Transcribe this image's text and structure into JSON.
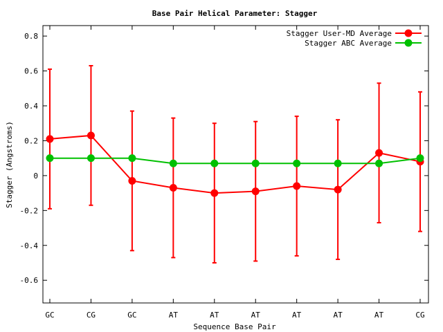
{
  "chart_data": {
    "type": "line",
    "title": "Base Pair Helical Parameter: Stagger",
    "xlabel": "Sequence Base Pair",
    "ylabel": "Stagger (Angstroms)",
    "categories": [
      "GC",
      "CG",
      "GC",
      "AT",
      "AT",
      "AT",
      "AT",
      "AT",
      "AT",
      "CG"
    ],
    "ylim": [
      -0.73,
      0.86
    ],
    "yticks": [
      -0.6,
      -0.4,
      -0.2,
      0,
      0.2,
      0.4,
      0.6,
      0.8
    ],
    "ytick_labels": [
      "-0.6",
      "-0.4",
      "-0.2",
      "0",
      "0.2",
      "0.4",
      "0.6",
      "0.8"
    ],
    "grid": false,
    "legend_position": "top-right",
    "series": [
      {
        "name": "Stagger User-MD Average",
        "color": "#ff0000",
        "values": [
          0.21,
          0.23,
          -0.03,
          -0.07,
          -0.1,
          -0.09,
          -0.06,
          -0.08,
          0.13,
          0.08
        ],
        "err_low": [
          -0.19,
          -0.17,
          -0.43,
          -0.47,
          -0.5,
          -0.49,
          -0.46,
          -0.48,
          -0.27,
          -0.32
        ],
        "err_high": [
          0.61,
          0.63,
          0.37,
          0.33,
          0.3,
          0.31,
          0.34,
          0.32,
          0.53,
          0.48
        ]
      },
      {
        "name": "Stagger ABC Average",
        "color": "#00c000",
        "values": [
          0.1,
          0.1,
          0.1,
          0.07,
          0.07,
          0.07,
          0.07,
          0.07,
          0.07,
          0.1
        ]
      }
    ]
  }
}
